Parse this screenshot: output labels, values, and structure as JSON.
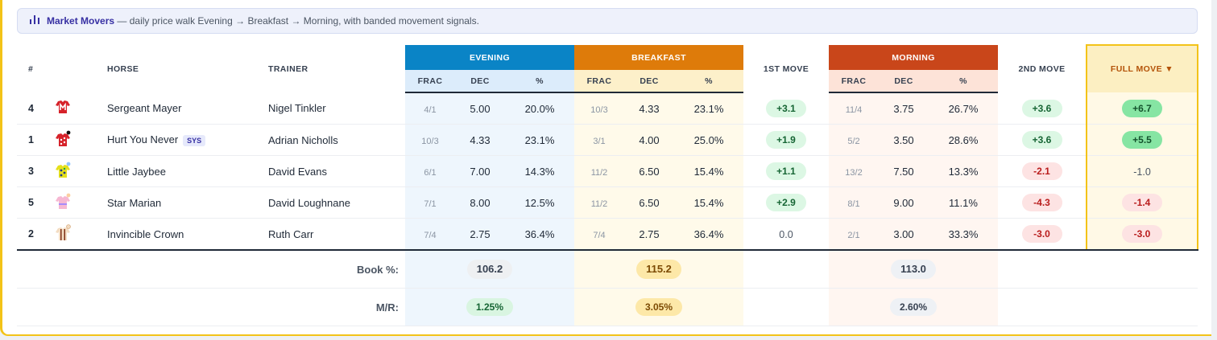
{
  "banner": {
    "title": "Market Movers",
    "text": " — daily price walk Evening → Breakfast → Morning, with banded movement signals."
  },
  "headers": {
    "num": "#",
    "horse": "HORSE",
    "trainer": "TRAINER",
    "evening": "EVENING",
    "breakfast": "BREAKFAST",
    "first_move": "1ST MOVE",
    "morning": "MORNING",
    "second_move": "2ND MOVE",
    "full_move": "FULL MOVE ▼",
    "frac": "FRAC",
    "dec": "DEC",
    "pct": "%"
  },
  "colors": {
    "evening": "#0a84c6",
    "breakfast": "#de7b0a",
    "morning": "#c9461a",
    "highlight": "#f3c318"
  },
  "rows": [
    {
      "num": "4",
      "silk": "red-jacket-white-m-icon",
      "horse": "Sergeant Mayer",
      "badge": "",
      "trainer": "Nigel Tinkler",
      "ev": {
        "frac": "4/1",
        "dec": "5.00",
        "pct": "20.0%"
      },
      "bf": {
        "frac": "10/3",
        "dec": "4.33",
        "pct": "23.1%"
      },
      "m1": "+3.1",
      "mo": {
        "frac": "11/4",
        "dec": "3.75",
        "pct": "26.7%"
      },
      "m2": "+3.6",
      "full": "+6.7"
    },
    {
      "num": "1",
      "silk": "red-white-stars-icon",
      "horse": "Hurt You Never",
      "badge": "SYS",
      "trainer": "Adrian Nicholls",
      "ev": {
        "frac": "10/3",
        "dec": "4.33",
        "pct": "23.1%"
      },
      "bf": {
        "frac": "3/1",
        "dec": "4.00",
        "pct": "25.0%"
      },
      "m1": "+1.9",
      "mo": {
        "frac": "5/2",
        "dec": "3.50",
        "pct": "28.6%"
      },
      "m2": "+3.6",
      "full": "+5.5"
    },
    {
      "num": "3",
      "silk": "yellow-spots-icon",
      "horse": "Little Jaybee",
      "badge": "",
      "trainer": "David Evans",
      "ev": {
        "frac": "6/1",
        "dec": "7.00",
        "pct": "14.3%"
      },
      "bf": {
        "frac": "11/2",
        "dec": "6.50",
        "pct": "15.4%"
      },
      "m1": "+1.1",
      "mo": {
        "frac": "13/2",
        "dec": "7.50",
        "pct": "13.3%"
      },
      "m2": "-2.1",
      "full": "-1.0"
    },
    {
      "num": "5",
      "silk": "pink-jacket-icon",
      "horse": "Star Marian",
      "badge": "",
      "trainer": "David Loughnane",
      "ev": {
        "frac": "7/1",
        "dec": "8.00",
        "pct": "12.5%"
      },
      "bf": {
        "frac": "11/2",
        "dec": "6.50",
        "pct": "15.4%"
      },
      "m1": "+2.9",
      "mo": {
        "frac": "8/1",
        "dec": "9.00",
        "pct": "11.1%"
      },
      "m2": "-4.3",
      "full": "-1.4"
    },
    {
      "num": "2",
      "silk": "beige-braces-icon",
      "horse": "Invincible Crown",
      "badge": "",
      "trainer": "Ruth Carr",
      "ev": {
        "frac": "7/4",
        "dec": "2.75",
        "pct": "36.4%"
      },
      "bf": {
        "frac": "7/4",
        "dec": "2.75",
        "pct": "36.4%"
      },
      "m1": "0.0",
      "mo": {
        "frac": "2/1",
        "dec": "3.00",
        "pct": "33.3%"
      },
      "m2": "-3.0",
      "full": "-3.0"
    }
  ],
  "footer": {
    "book_label": "Book %:",
    "book": {
      "evening": "106.2",
      "breakfast": "115.2",
      "morning": "113.0"
    },
    "mr_label": "M/R:",
    "mr": {
      "evening": "1.25%",
      "breakfast": "3.05%",
      "morning": "2.60%"
    }
  }
}
